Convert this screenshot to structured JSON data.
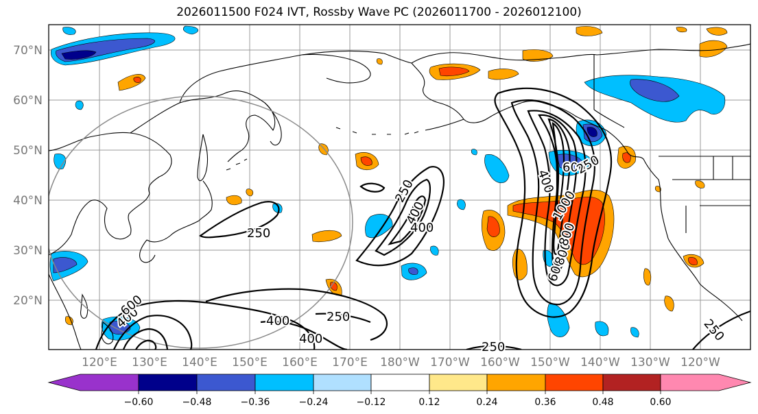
{
  "title": "2026011500 F024 IVT, Rossby Wave PC (2026011700 - 2026012100)",
  "lat_labels": [
    "70°N",
    "60°N",
    "50°N",
    "40°N",
    "30°N",
    "20°N"
  ],
  "lon_labels": [
    "120°E",
    "130°E",
    "140°E",
    "150°E",
    "160°E",
    "170°E",
    "180°W",
    "170°W",
    "160°W",
    "150°W",
    "140°W",
    "130°W",
    "120°W"
  ],
  "contour_labels": [
    "250",
    "250",
    "400",
    "400",
    "250",
    "400",
    "250",
    "250",
    "400",
    "400",
    "400",
    "600",
    "600",
    "800",
    "800",
    "1000",
    "600",
    "250"
  ],
  "colorbar": {
    "ticks": [
      "−0.60",
      "−0.48",
      "−0.36",
      "−0.24",
      "−0.12",
      "0.12",
      "0.24",
      "0.36",
      "0.48",
      "0.60"
    ],
    "colors": [
      "#9932cc",
      "#00008b",
      "#3c58d0",
      "#00bfff",
      "#b0e0ff",
      "#ffffff",
      "#ffe88a",
      "#ffa500",
      "#ff4500",
      "#b22222",
      "#ff88b0"
    ]
  },
  "colors": {
    "orange": "#ffa500",
    "red": "#ff4500",
    "yellow": "#ffe88a",
    "cyan": "#00bfff",
    "blue": "#3c58d0",
    "navy": "#00008b",
    "lightblue": "#b0e0ff"
  }
}
